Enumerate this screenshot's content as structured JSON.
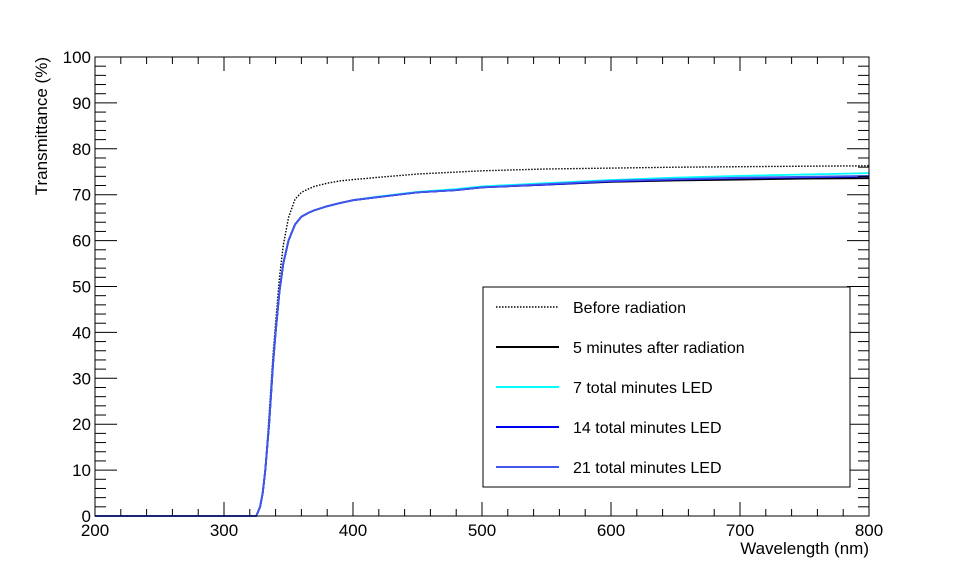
{
  "chart_data": {
    "type": "line",
    "title": "",
    "xlabel": "Wavelength (nm)",
    "ylabel": "Transmittance (%)",
    "xlim": [
      200,
      800
    ],
    "ylim": [
      0,
      100
    ],
    "x_ticks": [
      200,
      300,
      400,
      500,
      600,
      700,
      800
    ],
    "y_ticks": [
      0,
      10,
      20,
      30,
      40,
      50,
      60,
      70,
      80,
      90,
      100
    ],
    "x_tick_labels": [
      "200",
      "300",
      "400",
      "500",
      "600",
      "700",
      "800"
    ],
    "y_tick_labels": [
      "0",
      "10",
      "20",
      "30",
      "40",
      "50",
      "60",
      "70",
      "80",
      "90",
      "100"
    ],
    "grid": false,
    "legend_position": "bottom-right",
    "series": [
      {
        "name": "Before radiation",
        "color": "#000000",
        "style": "dotted",
        "x": [
          200,
          320,
          325,
          328,
          330,
          332,
          335,
          338,
          340,
          343,
          346,
          350,
          355,
          360,
          365,
          370,
          380,
          390,
          400,
          420,
          450,
          500,
          550,
          600,
          650,
          700,
          750,
          800
        ],
        "y": [
          0,
          0,
          0,
          2,
          5,
          10,
          22,
          35,
          42,
          52,
          59,
          65,
          69,
          70.5,
          71.2,
          71.8,
          72.5,
          73,
          73.3,
          73.8,
          74.5,
          75.2,
          75.6,
          75.8,
          76,
          76.1,
          76.2,
          76.3
        ]
      },
      {
        "name": "5 minutes after radiation",
        "color": "#000000",
        "style": "solid",
        "x": [
          200,
          320,
          325,
          328,
          330,
          332,
          335,
          338,
          340,
          343,
          346,
          350,
          355,
          360,
          365,
          370,
          380,
          390,
          400,
          420,
          450,
          480,
          500,
          550,
          600,
          650,
          700,
          750,
          800
        ],
        "y": [
          0,
          0,
          0,
          2,
          5,
          10,
          20,
          33,
          40,
          49,
          55,
          60,
          63.5,
          65.2,
          66,
          66.6,
          67.5,
          68.2,
          68.8,
          69.5,
          70.5,
          71,
          71.6,
          72.2,
          72.8,
          73.1,
          73.3,
          73.5,
          73.6
        ]
      },
      {
        "name": "7 total minutes LED",
        "color": "#00ffff",
        "style": "solid",
        "x": [
          200,
          320,
          325,
          328,
          330,
          332,
          335,
          338,
          340,
          343,
          346,
          350,
          355,
          360,
          365,
          370,
          380,
          390,
          400,
          420,
          450,
          480,
          500,
          550,
          600,
          650,
          700,
          750,
          800
        ],
        "y": [
          0,
          0,
          0,
          2,
          5,
          10,
          20,
          33,
          40,
          49,
          55,
          60,
          63.5,
          65.2,
          66,
          66.6,
          67.5,
          68.2,
          68.8,
          69.6,
          70.6,
          71.2,
          71.8,
          72.5,
          73.2,
          73.7,
          74.1,
          74.4,
          74.7
        ]
      },
      {
        "name": "14 total minutes LED",
        "color": "#0000ee",
        "style": "solid",
        "x": [
          200,
          320,
          325,
          328,
          330,
          332,
          335,
          338,
          340,
          343,
          346,
          350,
          355,
          360,
          365,
          370,
          380,
          390,
          400,
          420,
          450,
          480,
          500,
          550,
          600,
          650,
          700,
          750,
          800
        ],
        "y": [
          0,
          0,
          0,
          2,
          5,
          10,
          20,
          33,
          40,
          49,
          55,
          60,
          63.5,
          65.2,
          66,
          66.6,
          67.5,
          68.2,
          68.8,
          69.5,
          70.5,
          71,
          71.6,
          72.2,
          72.9,
          73.3,
          73.6,
          73.8,
          74
        ]
      },
      {
        "name": "21 total minutes LED",
        "color": "#4455ee",
        "style": "solid",
        "x": [
          200,
          320,
          325,
          328,
          330,
          332,
          335,
          338,
          340,
          343,
          346,
          350,
          355,
          360,
          365,
          370,
          380,
          390,
          400,
          420,
          450,
          480,
          500,
          550,
          600,
          650,
          700,
          750,
          800
        ],
        "y": [
          0,
          0,
          0,
          2,
          5,
          10,
          20,
          33,
          40,
          49,
          55,
          60,
          63.5,
          65.2,
          66,
          66.6,
          67.5,
          68.2,
          68.8,
          69.5,
          70.5,
          71,
          71.6,
          72.3,
          73,
          73.4,
          73.7,
          73.9,
          74.1
        ]
      }
    ]
  }
}
